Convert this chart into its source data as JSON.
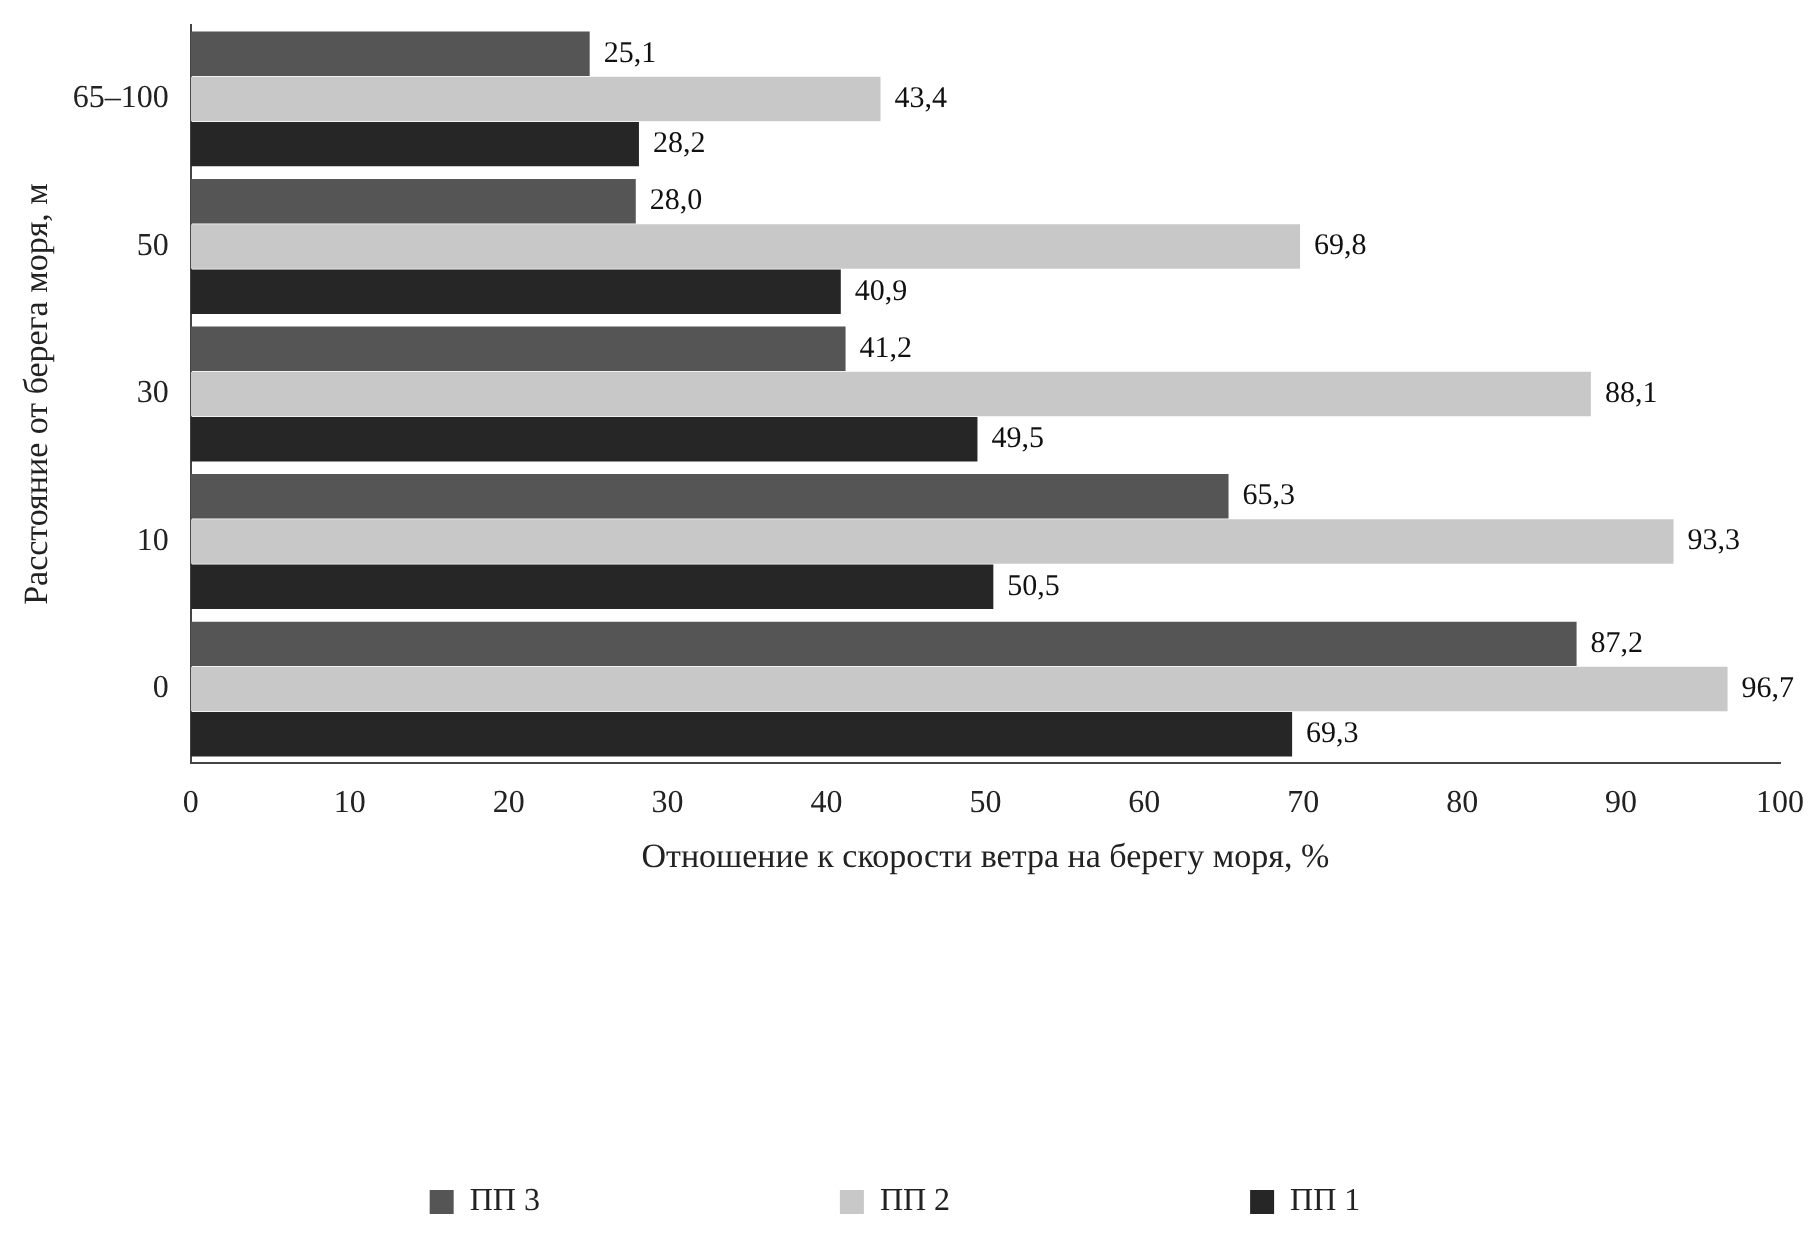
{
  "chart_data": {
    "type": "bar",
    "orientation": "horizontal",
    "xlabel": "Отношение к скорости ветра на берегу моря, %",
    "ylabel": "Расстояние от берега моря, м",
    "categories": [
      "65–100",
      "50",
      "30",
      "10",
      "0"
    ],
    "series": [
      {
        "name": "ПП 3",
        "color": "#555555",
        "values": [
          25.1,
          28.0,
          41.2,
          65.3,
          87.2
        ],
        "value_labels": [
          "25,1",
          "28,0",
          "41,2",
          "65,3",
          "87,2"
        ]
      },
      {
        "name": "ПП 2",
        "color": "#c8c8c8",
        "values": [
          43.4,
          69.8,
          88.1,
          93.3,
          96.7
        ],
        "value_labels": [
          "43,4",
          "69,8",
          "88,1",
          "93,3",
          "96,7"
        ]
      },
      {
        "name": "ПП 1",
        "color": "#262626",
        "values": [
          28.2,
          40.9,
          49.5,
          50.5,
          69.3
        ],
        "value_labels": [
          "28,2",
          "40,9",
          "49,5",
          "50,5",
          "69,3"
        ]
      }
    ],
    "xlim": [
      0,
      100
    ],
    "xticks": [
      0,
      10,
      20,
      30,
      40,
      50,
      60,
      70,
      80,
      90,
      100
    ],
    "grid": false,
    "legend": "bottom"
  }
}
